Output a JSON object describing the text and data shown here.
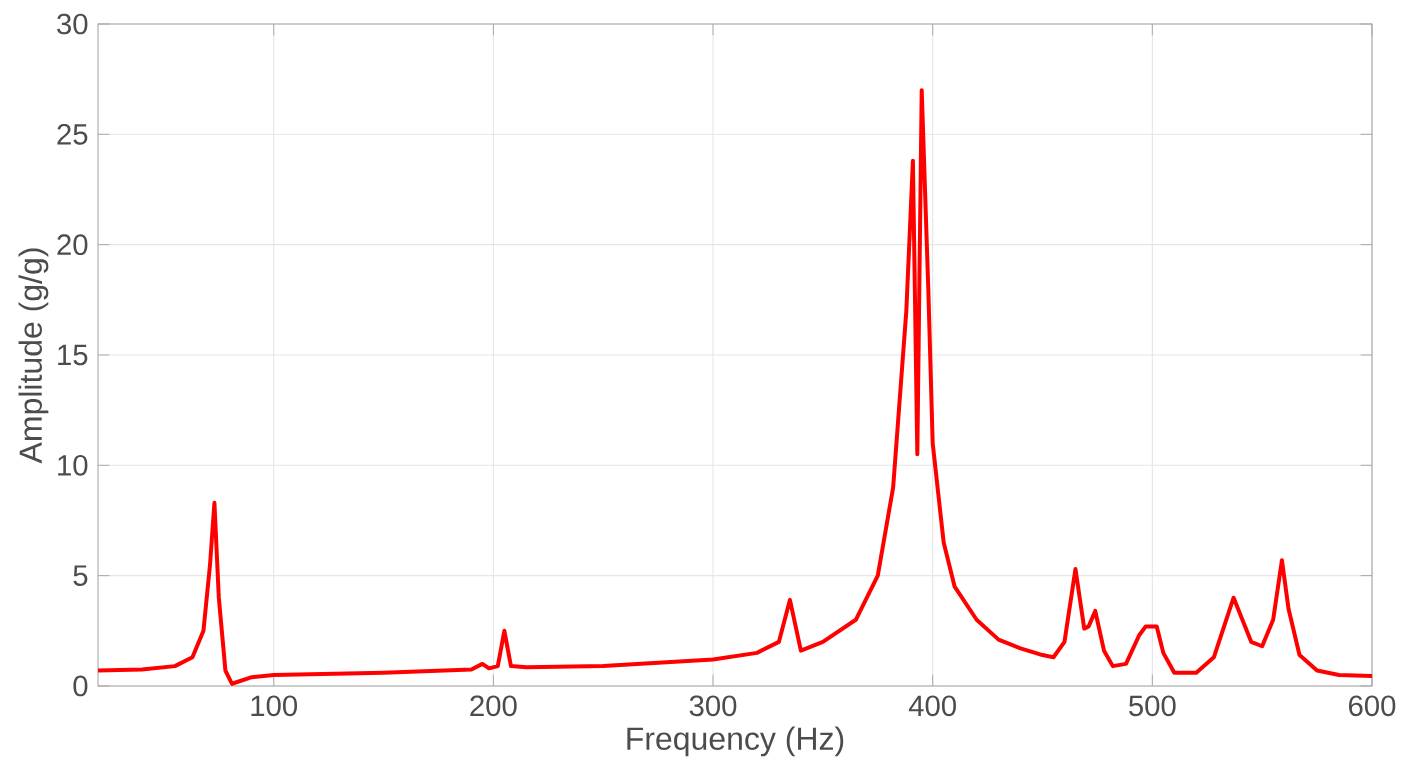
{
  "chart_data": {
    "type": "line",
    "xlabel": "Frequency (Hz)",
    "ylabel": "Amplitude (g/g)",
    "xlim": [
      20,
      600
    ],
    "xticks": [
      100,
      200,
      300,
      400,
      500,
      600
    ],
    "ylim": [
      0,
      30
    ],
    "yticks": [
      0,
      5,
      10,
      15,
      20,
      25,
      30
    ],
    "grid": true,
    "series": [
      {
        "color": "#ff0000",
        "x": [
          20,
          40,
          55,
          63,
          68,
          71,
          73,
          75,
          78,
          81,
          90,
          100,
          150,
          190,
          195,
          198,
          202,
          205,
          208,
          215,
          250,
          300,
          320,
          330,
          335,
          340,
          350,
          365,
          375,
          382,
          388,
          391,
          393,
          395,
          398,
          400,
          405,
          410,
          420,
          430,
          440,
          450,
          455,
          460,
          465,
          469,
          471,
          474,
          478,
          482,
          488,
          494,
          497,
          502,
          505,
          510,
          520,
          528,
          533,
          537,
          541,
          545,
          550,
          555,
          559,
          562,
          567,
          575,
          585,
          600
        ],
        "values": [
          0.7,
          0.75,
          0.9,
          1.3,
          2.5,
          5.5,
          8.3,
          4.0,
          0.7,
          0.1,
          0.4,
          0.5,
          0.6,
          0.75,
          1.0,
          0.8,
          0.9,
          2.5,
          0.9,
          0.85,
          0.9,
          1.2,
          1.5,
          2.0,
          3.9,
          1.6,
          2.0,
          3.0,
          5.0,
          9.0,
          17.0,
          23.8,
          10.5,
          27.0,
          18.0,
          11.0,
          6.5,
          4.5,
          3.0,
          2.1,
          1.7,
          1.4,
          1.3,
          2.0,
          5.3,
          2.6,
          2.7,
          3.4,
          1.6,
          0.9,
          1.0,
          2.3,
          2.7,
          2.7,
          1.5,
          0.6,
          0.6,
          1.3,
          2.8,
          4.0,
          3.0,
          2.0,
          1.8,
          3.0,
          5.7,
          3.5,
          1.4,
          0.7,
          0.5,
          0.45
        ]
      }
    ]
  }
}
